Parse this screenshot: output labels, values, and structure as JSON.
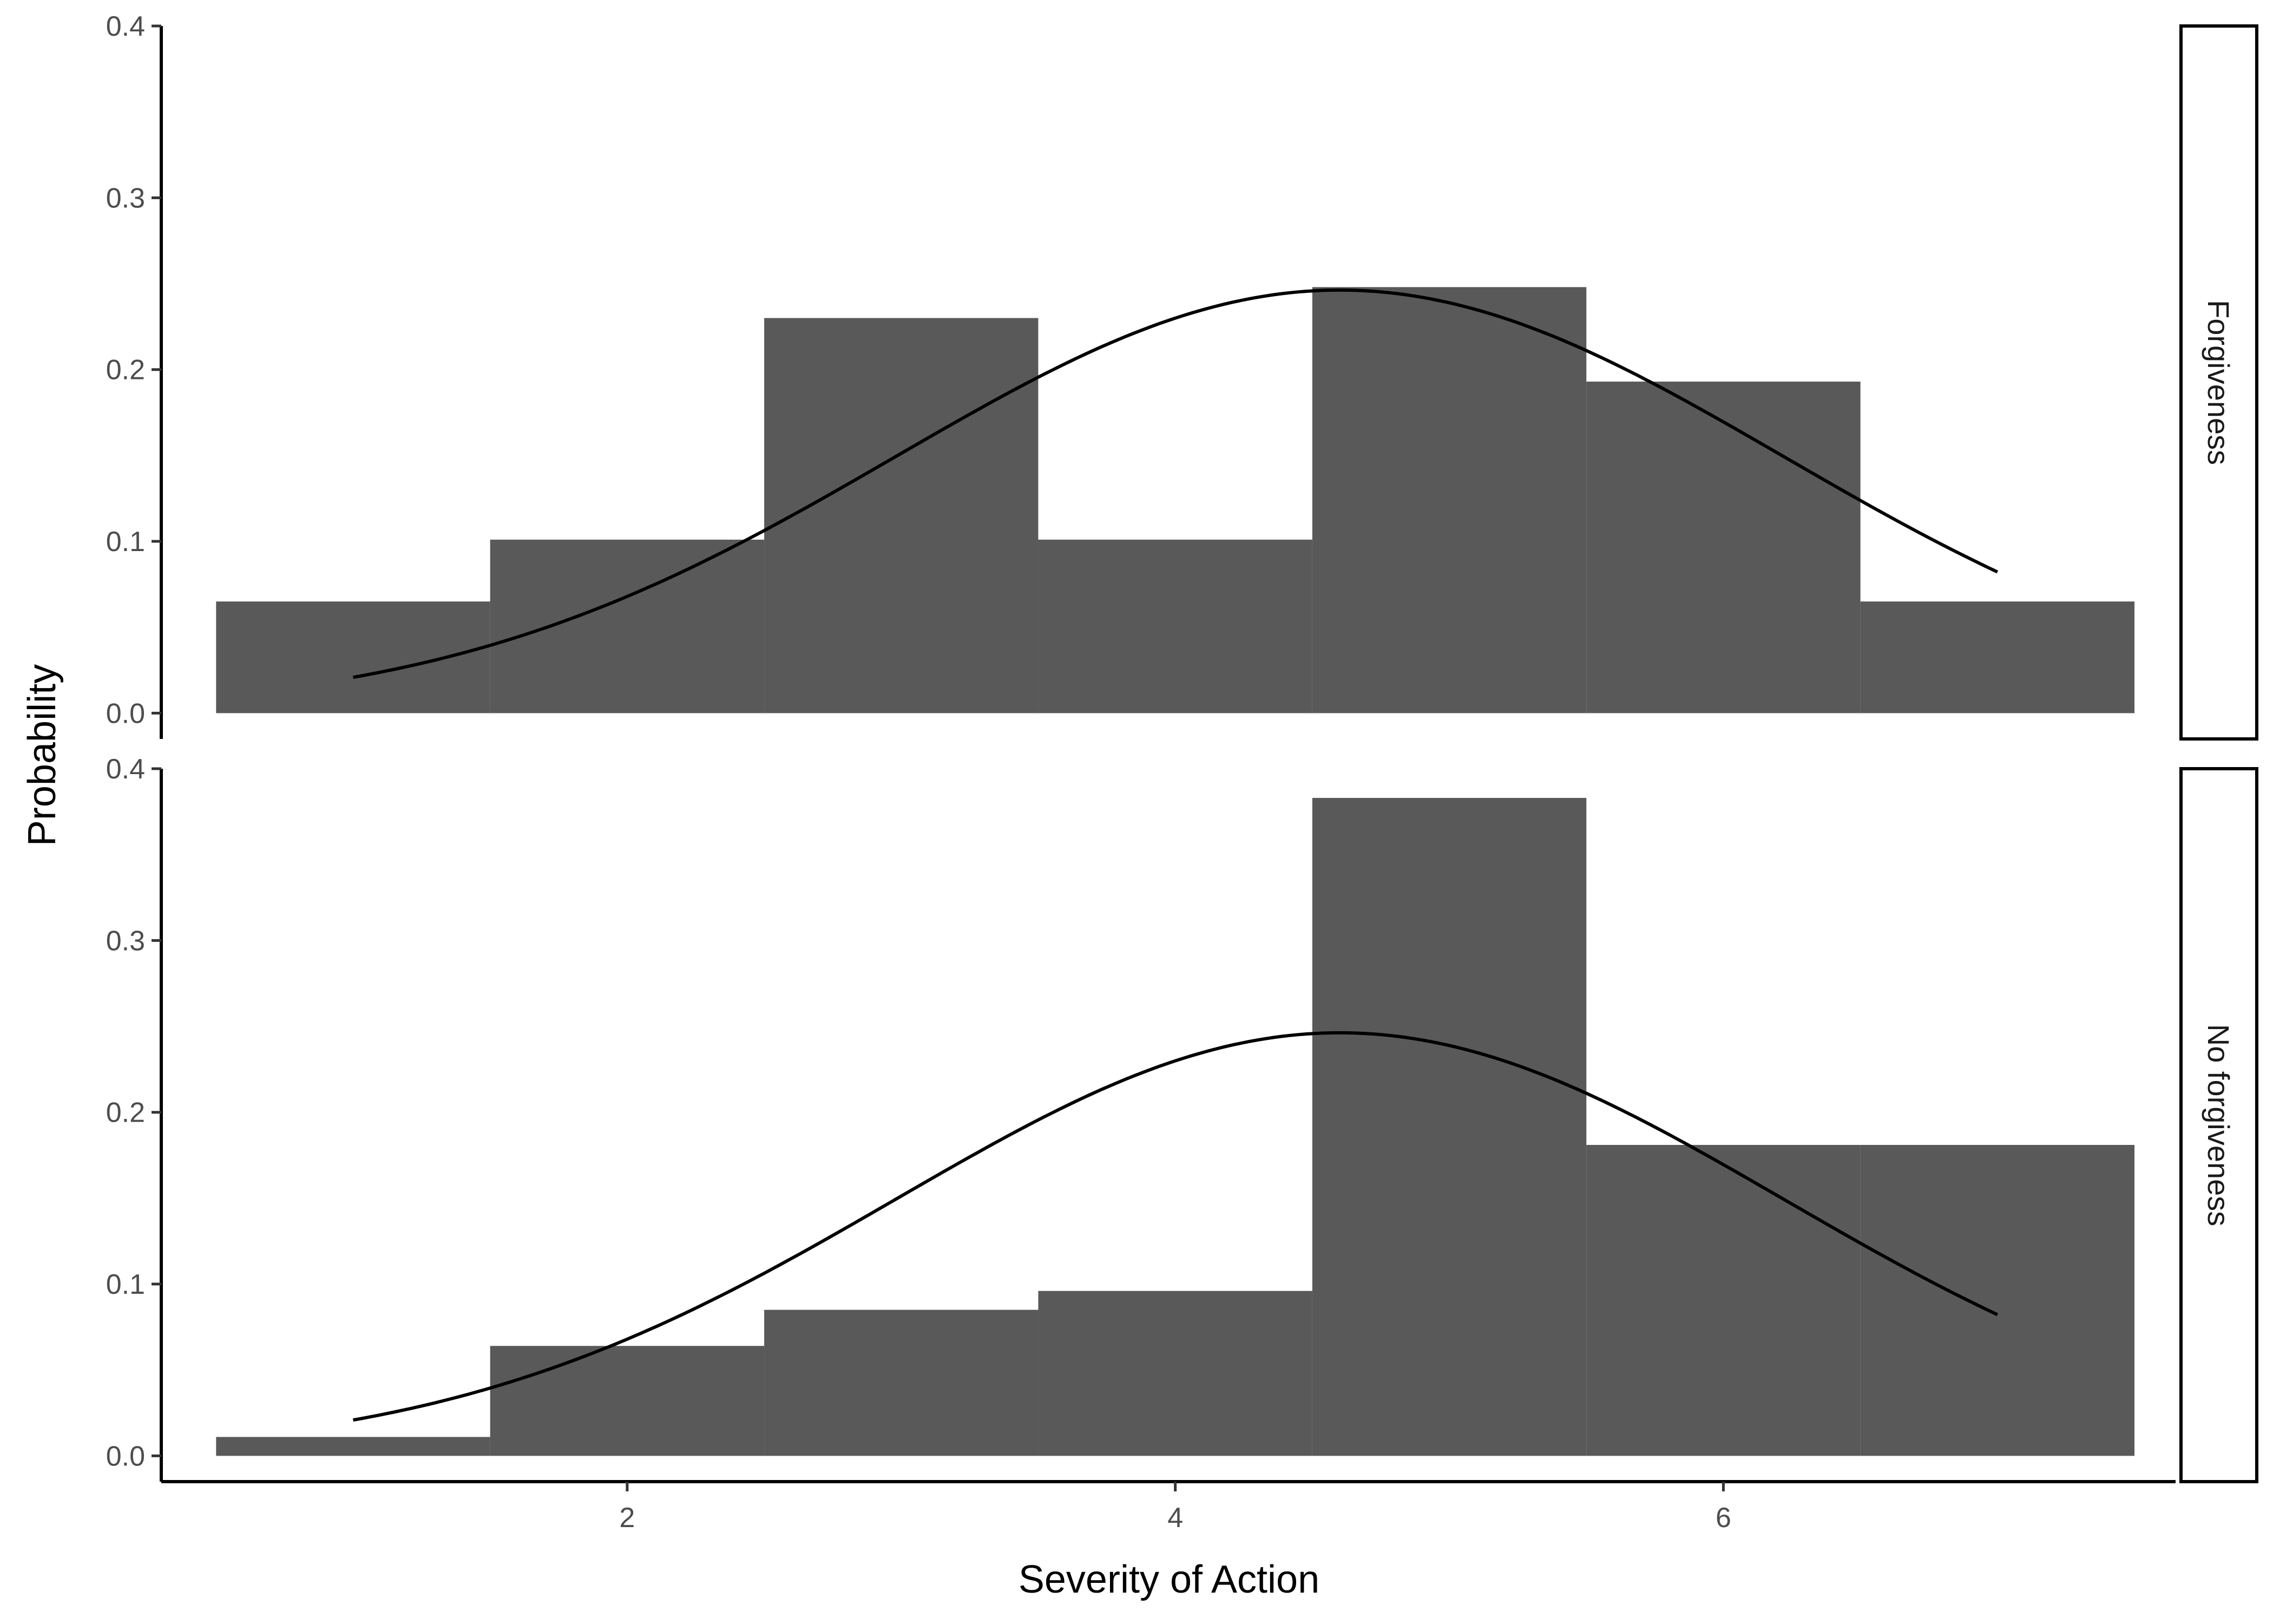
{
  "chart_data": {
    "type": "bar",
    "xlabel": "Severity of Action",
    "ylabel": "Probability",
    "xlim": [
      0.3,
      7.65
    ],
    "ylim": [
      -0.015,
      0.4
    ],
    "x_ticks": [
      2,
      4,
      6
    ],
    "y_ticks": [
      0.0,
      0.1,
      0.2,
      0.3,
      0.4
    ],
    "y_tick_labels": [
      "0.0",
      "0.1",
      "0.2",
      "0.3",
      "0.4"
    ],
    "bin_edges": [
      0.5,
      1.5,
      2.5,
      3.5,
      4.5,
      5.5,
      6.5,
      7.5
    ],
    "bar_color": "#595959",
    "panels": [
      {
        "facet": "Forgiveness",
        "values": [
          0.065,
          0.101,
          0.23,
          0.101,
          0.248,
          0.193,
          0.065
        ],
        "normal_curve": {
          "mean": 4.6,
          "sd": 1.62,
          "x_range": [
            1,
            7
          ]
        }
      },
      {
        "facet": "No forgiveness",
        "values": [
          0.011,
          0.064,
          0.085,
          0.096,
          0.383,
          0.181,
          0.181
        ],
        "normal_curve": {
          "mean": 4.6,
          "sd": 1.62,
          "x_range": [
            1,
            7
          ]
        }
      }
    ]
  }
}
